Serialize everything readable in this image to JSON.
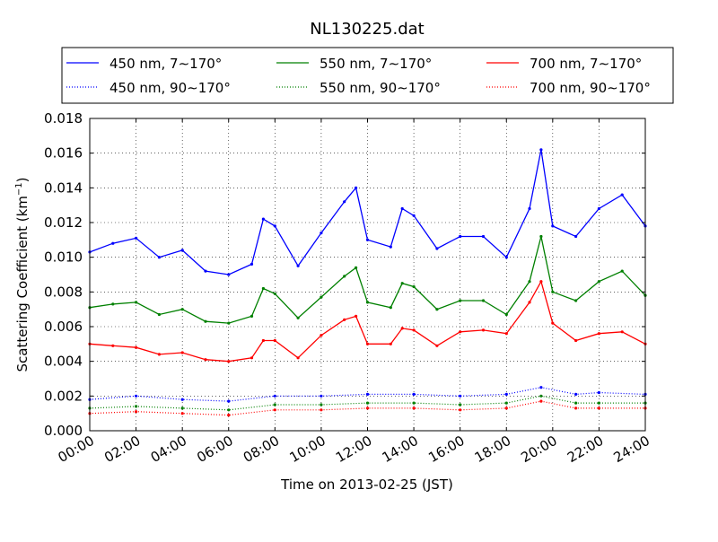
{
  "chart_data": {
    "type": "line",
    "title": "NL130225.dat",
    "xlabel": "Time on 2013-02-25 (JST)",
    "ylabel": "Scattering Coefficient (km",
    "ylabel_sup": "−1",
    "ylabel_close": ")",
    "xlim": [
      "00:00",
      "24:00"
    ],
    "ylim": [
      0.0,
      0.018
    ],
    "grid": true,
    "legend_position": "top",
    "xticks": [
      "00:00",
      "02:00",
      "04:00",
      "06:00",
      "08:00",
      "10:00",
      "12:00",
      "14:00",
      "16:00",
      "18:00",
      "20:00",
      "22:00",
      "24:00"
    ],
    "yticks": [
      "0.000",
      "0.002",
      "0.004",
      "0.006",
      "0.008",
      "0.010",
      "0.012",
      "0.014",
      "0.016",
      "0.018"
    ],
    "series": [
      {
        "name": "450 nm, 7∼170°",
        "color": "#0000ff",
        "style": "solid",
        "x": [
          "00:00",
          "01:00",
          "02:00",
          "03:00",
          "04:00",
          "05:00",
          "06:00",
          "07:00",
          "07:30",
          "08:00",
          "09:00",
          "10:00",
          "11:00",
          "11:30",
          "12:00",
          "13:00",
          "13:30",
          "14:00",
          "15:00",
          "16:00",
          "17:00",
          "18:00",
          "19:00",
          "19:30",
          "20:00",
          "21:00",
          "22:00",
          "23:00",
          "24:00"
        ],
        "values": [
          0.0103,
          0.0108,
          0.0111,
          0.01,
          0.0104,
          0.0092,
          0.009,
          0.0096,
          0.0122,
          0.0118,
          0.0095,
          0.0114,
          0.0132,
          0.014,
          0.011,
          0.0106,
          0.0128,
          0.0124,
          0.0105,
          0.0112,
          0.0112,
          0.01,
          0.0128,
          0.0162,
          0.0118,
          0.0112,
          0.0128,
          0.0136,
          0.0118
        ]
      },
      {
        "name": "550 nm, 7∼170°",
        "color": "#008000",
        "style": "solid",
        "x": [
          "00:00",
          "01:00",
          "02:00",
          "03:00",
          "04:00",
          "05:00",
          "06:00",
          "07:00",
          "07:30",
          "08:00",
          "09:00",
          "10:00",
          "11:00",
          "11:30",
          "12:00",
          "13:00",
          "13:30",
          "14:00",
          "15:00",
          "16:00",
          "17:00",
          "18:00",
          "19:00",
          "19:30",
          "20:00",
          "21:00",
          "22:00",
          "23:00",
          "24:00"
        ],
        "values": [
          0.0071,
          0.0073,
          0.0074,
          0.0067,
          0.007,
          0.0063,
          0.0062,
          0.0066,
          0.0082,
          0.0079,
          0.0065,
          0.0077,
          0.0089,
          0.0094,
          0.0074,
          0.0071,
          0.0085,
          0.0083,
          0.007,
          0.0075,
          0.0075,
          0.0067,
          0.0086,
          0.0112,
          0.008,
          0.0075,
          0.0086,
          0.0092,
          0.0078
        ]
      },
      {
        "name": "700 nm, 7∼170°",
        "color": "#ff0000",
        "style": "solid",
        "x": [
          "00:00",
          "01:00",
          "02:00",
          "03:00",
          "04:00",
          "05:00",
          "06:00",
          "07:00",
          "07:30",
          "08:00",
          "09:00",
          "10:00",
          "11:00",
          "11:30",
          "12:00",
          "13:00",
          "13:30",
          "14:00",
          "15:00",
          "16:00",
          "17:00",
          "18:00",
          "19:00",
          "19:30",
          "20:00",
          "21:00",
          "22:00",
          "23:00",
          "24:00"
        ],
        "values": [
          0.005,
          0.0049,
          0.0048,
          0.0044,
          0.0045,
          0.0041,
          0.004,
          0.0042,
          0.0052,
          0.0052,
          0.0042,
          0.0055,
          0.0064,
          0.0066,
          0.005,
          0.005,
          0.0059,
          0.0058,
          0.0049,
          0.0057,
          0.0058,
          0.0056,
          0.0074,
          0.0086,
          0.0062,
          0.0052,
          0.0056,
          0.0057,
          0.005
        ]
      },
      {
        "name": "450 nm, 90∼170°",
        "color": "#0000ff",
        "style": "dotted",
        "x": [
          "00:00",
          "02:00",
          "04:00",
          "06:00",
          "08:00",
          "10:00",
          "12:00",
          "14:00",
          "16:00",
          "18:00",
          "19:30",
          "21:00",
          "22:00",
          "24:00"
        ],
        "values": [
          0.0018,
          0.002,
          0.0018,
          0.0017,
          0.002,
          0.002,
          0.0021,
          0.0021,
          0.002,
          0.0021,
          0.0025,
          0.0021,
          0.0022,
          0.0021
        ]
      },
      {
        "name": "550 nm, 90∼170°",
        "color": "#008000",
        "style": "dotted",
        "x": [
          "00:00",
          "02:00",
          "04:00",
          "06:00",
          "08:00",
          "10:00",
          "12:00",
          "14:00",
          "16:00",
          "18:00",
          "19:30",
          "21:00",
          "22:00",
          "24:00"
        ],
        "values": [
          0.0013,
          0.0014,
          0.0013,
          0.0012,
          0.0015,
          0.0015,
          0.0016,
          0.0016,
          0.0015,
          0.0016,
          0.002,
          0.0016,
          0.0016,
          0.0016
        ]
      },
      {
        "name": "700 nm, 90∼170°",
        "color": "#ff0000",
        "style": "dotted",
        "x": [
          "00:00",
          "02:00",
          "04:00",
          "06:00",
          "08:00",
          "10:00",
          "12:00",
          "14:00",
          "16:00",
          "18:00",
          "19:30",
          "21:00",
          "22:00",
          "24:00"
        ],
        "values": [
          0.001,
          0.0011,
          0.001,
          0.0009,
          0.0012,
          0.0012,
          0.0013,
          0.0013,
          0.0012,
          0.0013,
          0.0017,
          0.0013,
          0.0013,
          0.0013
        ]
      }
    ]
  }
}
